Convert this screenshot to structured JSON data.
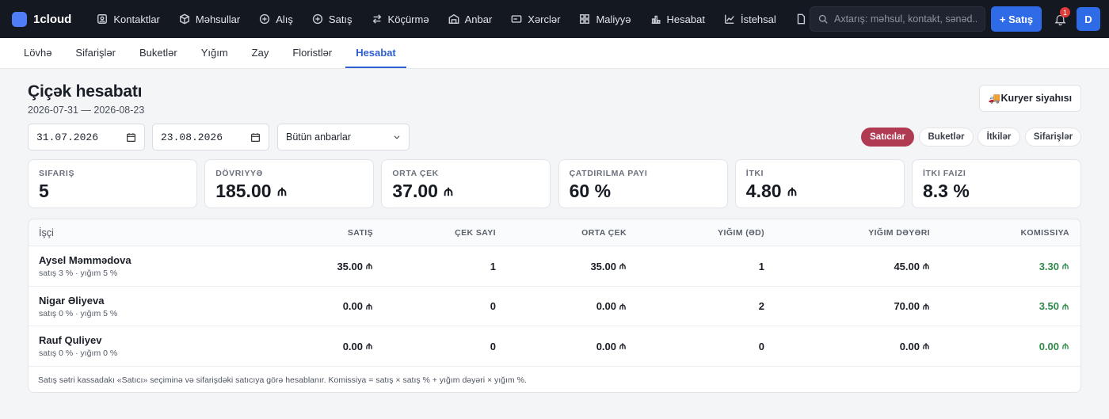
{
  "app": {
    "name": "1cloud"
  },
  "nav": [
    {
      "id": "contacts",
      "label": "Kontaktlar",
      "icon": "contacts-icon"
    },
    {
      "id": "products",
      "label": "Məhsullar",
      "icon": "box-icon"
    },
    {
      "id": "purchase",
      "label": "Alış",
      "icon": "plus-circle-icon"
    },
    {
      "id": "sales",
      "label": "Satış",
      "icon": "plus-circle-icon"
    },
    {
      "id": "transfer",
      "label": "Köçürmə",
      "icon": "transfer-icon"
    },
    {
      "id": "warehouse",
      "label": "Anbar",
      "icon": "warehouse-icon"
    },
    {
      "id": "expenses",
      "label": "Xərclər",
      "icon": "wallet-icon"
    },
    {
      "id": "finance",
      "label": "Maliyyə",
      "icon": "grid-icon"
    },
    {
      "id": "account",
      "label": "Hesabat",
      "icon": "bar-chart-icon"
    },
    {
      "id": "production",
      "label": "İstehsal",
      "icon": "line-chart-icon"
    }
  ],
  "search": {
    "placeholder": "Axtarış: məhsul, kontakt, sənəd..."
  },
  "new_button": "+ Satış",
  "notifications": {
    "count": "1"
  },
  "user": {
    "initial": "D"
  },
  "subtabs": [
    {
      "label": "Lövhə",
      "active": false
    },
    {
      "label": "Sifarişlər",
      "active": false
    },
    {
      "label": "Buketlər",
      "active": false
    },
    {
      "label": "Yığım",
      "active": false
    },
    {
      "label": "Zay",
      "active": false
    },
    {
      "label": "Floristlər",
      "active": false
    },
    {
      "label": "Hesabat",
      "active": true
    }
  ],
  "page": {
    "title": "Çiçək hesabatı",
    "range": "2026-07-31 — 2026-08-23",
    "courier_button": "🚚Kuryer siyahısı"
  },
  "filters": {
    "date_from": "31.07.2026",
    "date_to": "23.08.2026",
    "warehouse": "Bütün anbarlar"
  },
  "segments": [
    {
      "label": "Satıcılar",
      "active": true
    },
    {
      "label": "Buketlər",
      "active": false
    },
    {
      "label": "İtkilər",
      "active": false
    },
    {
      "label": "Sifarişlər",
      "active": false
    }
  ],
  "kpis": [
    {
      "label": "Sifariş",
      "value": "5",
      "currency": false
    },
    {
      "label": "Dövriyyə",
      "value": "185.00",
      "currency": true
    },
    {
      "label": "Orta çek",
      "value": "37.00",
      "currency": true
    },
    {
      "label": "Çatdırılma payı",
      "value": "60 %",
      "currency": false
    },
    {
      "label": "İtki",
      "value": "4.80",
      "currency": true
    },
    {
      "label": "İtki faizi",
      "value": "8.3 %",
      "currency": false
    }
  ],
  "table": {
    "columns": [
      "İşçi",
      "Satış",
      "Çek sayı",
      "Orta çek",
      "Yığım (əd)",
      "Yığım dəyəri",
      "Komissiya"
    ],
    "rows": [
      {
        "name": "Aysel Məmmədova",
        "sub": "satış 3 % · yığım 5 %",
        "sales": "35.00",
        "checks": "1",
        "avg": "35.00",
        "picks": "1",
        "pick_value": "45.00",
        "commission": "3.30"
      },
      {
        "name": "Nigar Əliyeva",
        "sub": "satış 0 % · yığım 5 %",
        "sales": "0.00",
        "checks": "0",
        "avg": "0.00",
        "picks": "2",
        "pick_value": "70.00",
        "commission": "3.50"
      },
      {
        "name": "Rauf Quliyev",
        "sub": "satış 0 % · yığım 0 %",
        "sales": "0.00",
        "checks": "0",
        "avg": "0.00",
        "picks": "0",
        "pick_value": "0.00",
        "commission": "0.00"
      }
    ],
    "note": "Satış sətri kassadakı «Satıcı» seçiminə və sifarişdəki satıcıya görə hesablanır. Komissiya = satış × satış % + yığım dəyəri × yığım %."
  },
  "colors": {
    "accent": "#2f6be6",
    "segment_active": "#b03a52",
    "commission": "#2f8a4a"
  }
}
